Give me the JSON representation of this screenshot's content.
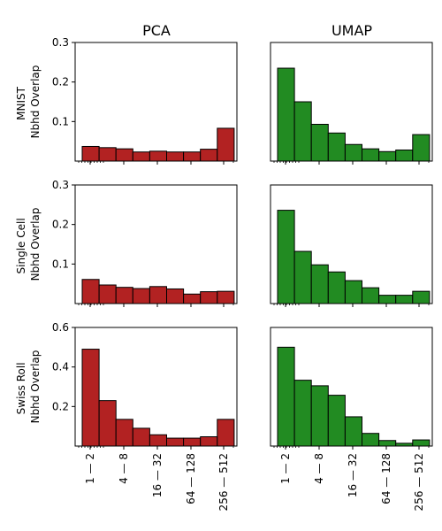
{
  "column_titles": [
    "PCA",
    "UMAP"
  ],
  "row_labels": [
    [
      "MNIST",
      "Nbhd Overlap"
    ],
    [
      "Single Cell",
      "Nbhd Overlap"
    ],
    [
      "Swiss Roll",
      "Nbhd Overlap"
    ]
  ],
  "x_tick_labels": [
    "1 — 2",
    "4 — 8",
    "16 — 32",
    "64 — 128",
    "256 — 512"
  ],
  "colors": {
    "pca": "#b22222",
    "umap": "#228b22",
    "edge": "#000000"
  },
  "chart_data": [
    {
      "type": "bar",
      "row": 0,
      "col": 0,
      "ylim": [
        0,
        0.3
      ],
      "yticks": [
        0.1,
        0.2,
        0.3
      ],
      "values": [
        0.037,
        0.034,
        0.031,
        0.023,
        0.025,
        0.023,
        0.023,
        0.03,
        0.083
      ]
    },
    {
      "type": "bar",
      "row": 0,
      "col": 1,
      "ylim": [
        0,
        0.3
      ],
      "yticks": [],
      "values": [
        0.235,
        0.15,
        0.093,
        0.071,
        0.042,
        0.031,
        0.024,
        0.028,
        0.067
      ]
    },
    {
      "type": "bar",
      "row": 1,
      "col": 0,
      "ylim": [
        0,
        0.3
      ],
      "yticks": [
        0.1,
        0.2,
        0.3
      ],
      "values": [
        0.061,
        0.047,
        0.041,
        0.038,
        0.043,
        0.037,
        0.024,
        0.03,
        0.031
      ]
    },
    {
      "type": "bar",
      "row": 1,
      "col": 1,
      "ylim": [
        0,
        0.3
      ],
      "yticks": [],
      "values": [
        0.236,
        0.132,
        0.098,
        0.08,
        0.058,
        0.04,
        0.021,
        0.021,
        0.031
      ]
    },
    {
      "type": "bar",
      "row": 2,
      "col": 0,
      "ylim": [
        0,
        0.6
      ],
      "yticks": [
        0.2,
        0.4,
        0.6
      ],
      "values": [
        0.49,
        0.23,
        0.135,
        0.09,
        0.057,
        0.04,
        0.04,
        0.047,
        0.135
      ]
    },
    {
      "type": "bar",
      "row": 2,
      "col": 1,
      "ylim": [
        0,
        0.6
      ],
      "yticks": [],
      "values": [
        0.5,
        0.333,
        0.305,
        0.257,
        0.148,
        0.064,
        0.028,
        0.014,
        0.031
      ]
    }
  ]
}
